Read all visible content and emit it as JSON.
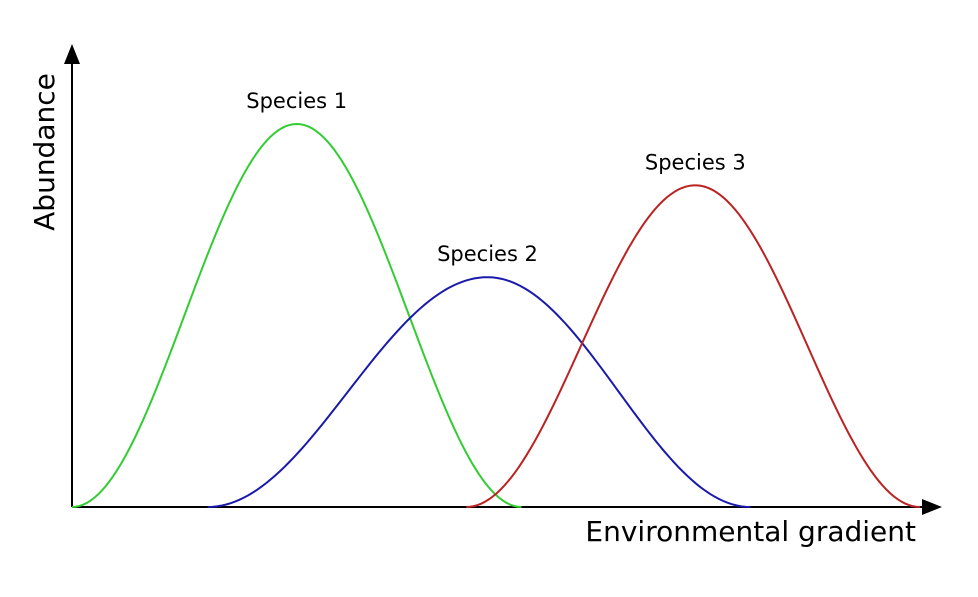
{
  "chart_data": {
    "type": "line",
    "xlabel": "Environmental gradient",
    "ylabel": "Abundance",
    "xlim": [
      0,
      1
    ],
    "ylim": [
      0,
      1
    ],
    "grid": false,
    "series": [
      {
        "name": "Species 1",
        "color": "#33cc33",
        "x_range": [
          0.0,
          0.53
        ],
        "peak_x": 0.265,
        "peak_y": 1.0
      },
      {
        "name": "Species 2",
        "color": "#1a1aaa",
        "x_range": [
          0.16,
          0.8
        ],
        "peak_x": 0.49,
        "peak_y": 0.6
      },
      {
        "name": "Species 3",
        "color": "#bb2222",
        "x_range": [
          0.465,
          1.0
        ],
        "peak_x": 0.735,
        "peak_y": 0.84
      }
    ]
  }
}
